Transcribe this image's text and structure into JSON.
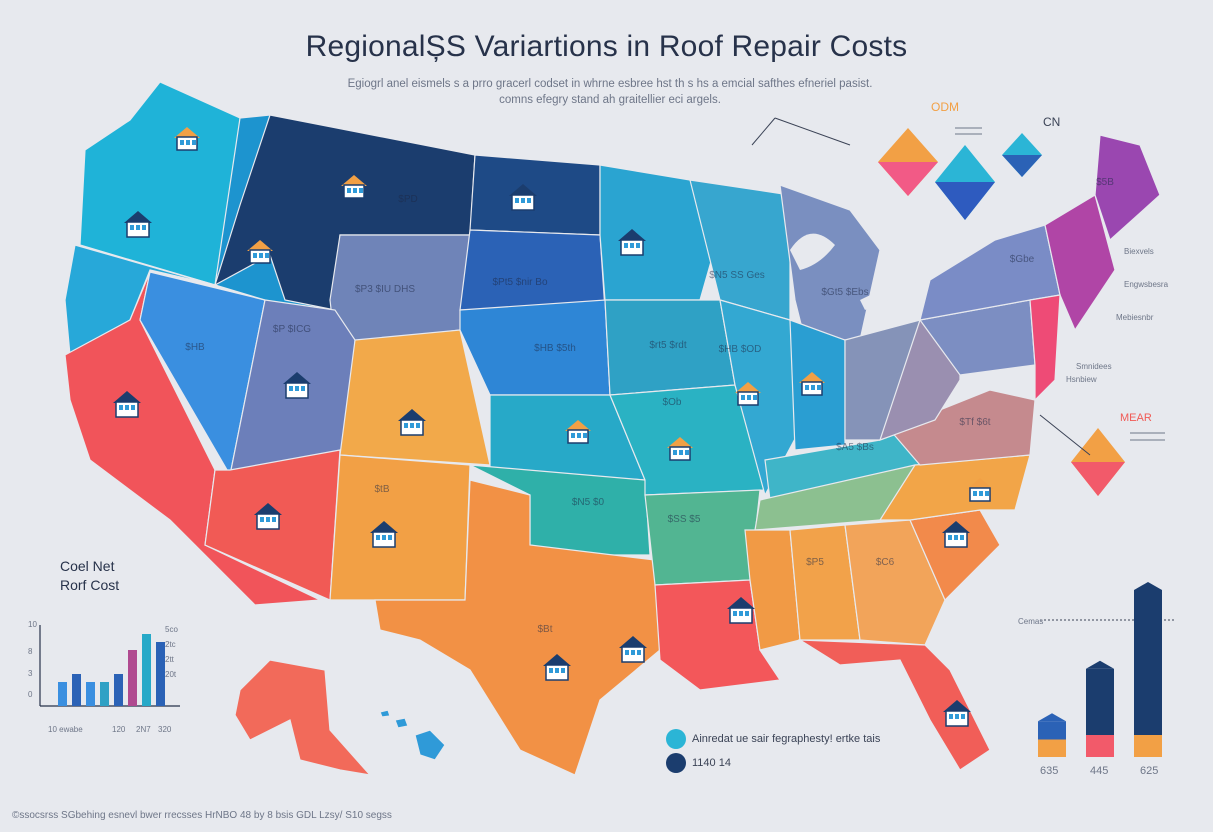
{
  "title": "RegionalȘS Variartions in Roof Repair Costs",
  "subtitle_lines": [
    "Egiogrl anel eismels s a prro gracerl codset in whrne esbree hst th s hs a emcial safthes efneriel pasist.",
    "comns efegry stand ah graitellier eci argels."
  ],
  "map_states": [
    {
      "region": "Washington",
      "color": "#1fb3d8"
    },
    {
      "region": "Oregon",
      "color": "#27a8d9"
    },
    {
      "region": "California",
      "color": "#f1545a"
    },
    {
      "region": "Nevada",
      "color": "#3a8fe0"
    },
    {
      "region": "Idaho",
      "color": "#1d94cf"
    },
    {
      "region": "Montana",
      "color": "#1b3d6e"
    },
    {
      "region": "Wyoming",
      "color": "#6f84b8"
    },
    {
      "region": "Utah",
      "color": "#6c7fba"
    },
    {
      "region": "Colorado",
      "color": "#f2a94a"
    },
    {
      "region": "Arizona",
      "color": "#f15a55"
    },
    {
      "region": "New Mexico",
      "color": "#f2a045"
    },
    {
      "region": "North Dakota",
      "color": "#1e4a86"
    },
    {
      "region": "South Dakota",
      "color": "#2b62b6"
    },
    {
      "region": "Nebraska",
      "color": "#2e86d6"
    },
    {
      "region": "Kansas",
      "color": "#27a9c8"
    },
    {
      "region": "Oklahoma",
      "color": "#2fb0a9"
    },
    {
      "region": "Texas",
      "color": "#f29145"
    },
    {
      "region": "Minnesota",
      "color": "#2aa4d1"
    },
    {
      "region": "Iowa",
      "color": "#2fa1c5"
    },
    {
      "region": "Missouri",
      "color": "#2ab2c3"
    },
    {
      "region": "Arkansas",
      "color": "#52b592"
    },
    {
      "region": "Louisiana",
      "color": "#f3575a"
    },
    {
      "region": "Wisconsin",
      "color": "#37a6cf"
    },
    {
      "region": "Illinois",
      "color": "#33a8d2"
    },
    {
      "region": "Michigan",
      "color": "#7a8fc0"
    },
    {
      "region": "Indiana",
      "color": "#2a9ed2"
    },
    {
      "region": "Ohio",
      "color": "#8593b8"
    },
    {
      "region": "Kentucky",
      "color": "#3fb5c8"
    },
    {
      "region": "Tennessee",
      "color": "#8cc090"
    },
    {
      "region": "Mississippi",
      "color": "#f19a45"
    },
    {
      "region": "Alabama",
      "color": "#f2a24a"
    },
    {
      "region": "Georgia",
      "color": "#f2a45a"
    },
    {
      "region": "Florida",
      "color": "#f15e58"
    },
    {
      "region": "South Carolina",
      "color": "#f28a4b"
    },
    {
      "region": "North Carolina",
      "color": "#f2a548"
    },
    {
      "region": "Virginia",
      "color": "#c58a8e"
    },
    {
      "region": "West Virginia",
      "color": "#9a8fb0"
    },
    {
      "region": "Pennsylvania",
      "color": "#7c8ec2"
    },
    {
      "region": "New York",
      "color": "#7a8cc6"
    },
    {
      "region": "New England",
      "color": "#b045a6"
    },
    {
      "region": "Maine",
      "color": "#9a47b0"
    },
    {
      "region": "New Jersey",
      "color": "#ee4b76"
    },
    {
      "region": "Alaska",
      "color": "#f26a5a"
    },
    {
      "region": "Hawaii",
      "color": "#2f9ad8"
    }
  ],
  "map_labels": [
    {
      "text": "$PD",
      "state": "Montana"
    },
    {
      "text": "$Pt5 $nir Bo",
      "state": "South Dakota"
    },
    {
      "text": "$P3 $IU DHS",
      "state": "Wyoming"
    },
    {
      "text": "$P $ICG",
      "state": "Utah"
    },
    {
      "text": "$HB",
      "state": "Nevada"
    },
    {
      "text": "$N5 SS Ges",
      "state": "Minnesota"
    },
    {
      "text": "$Gt5 $Ebs",
      "state": "Michigan"
    },
    {
      "text": "$rt5 $rdt",
      "state": "Iowa"
    },
    {
      "text": "$HB $5th",
      "state": "Nebraska"
    },
    {
      "text": "$HB $OD",
      "state": "Illinois"
    },
    {
      "text": "$Gbe",
      "state": "Pennsylvania"
    },
    {
      "text": "$Ob",
      "state": "Missouri"
    },
    {
      "text": "$N5 $0",
      "state": "Oklahoma"
    },
    {
      "text": "$tB",
      "state": "New Mexico"
    },
    {
      "text": "$SS $5",
      "state": "Arkansas"
    },
    {
      "text": "$P5",
      "state": "Alabama"
    },
    {
      "text": "$C6",
      "state": "Georgia"
    },
    {
      "text": "$Bt",
      "state": "Texas"
    },
    {
      "text": "$Tf $6t",
      "state": "Virginia"
    },
    {
      "text": "$A5 $Bs",
      "state": "Kentucky"
    },
    {
      "text": "$5B",
      "state": "New England"
    }
  ],
  "callouts": {
    "odm": "ODM",
    "cn": "CN",
    "mear": "MEAR",
    "side_notes": [
      "Biexvels",
      "Engwsbesra",
      "Mebiesnbr",
      "Smnidees",
      "Hsnbiew"
    ],
    "cemas": "Cemas"
  },
  "inset": {
    "title": "Coel Net\nRorf Cost",
    "y_ticks": [
      "10",
      "8",
      "3",
      "0"
    ],
    "values": [
      3,
      4,
      3,
      3,
      4,
      7,
      9,
      8
    ],
    "colors": [
      "#3a8fe0",
      "#2b62b6",
      "#3a8fe0",
      "#2fa1c5",
      "#2b62b6",
      "#b04a90",
      "#27a9c8",
      "#2b62b6"
    ],
    "x_labels": [
      "10 ewabe",
      "120",
      "2N7",
      "320"
    ],
    "side_labels": [
      "5co",
      "2tc",
      "2tt",
      "20t"
    ]
  },
  "bars_right": {
    "values": [
      25,
      55,
      100
    ],
    "labels": [
      "635",
      "445",
      "625"
    ]
  },
  "legend": [
    {
      "text": "Ainredat ue sair fegraphesty! ertke tais",
      "color": "#2bb5d6"
    },
    {
      "text": "1140 14",
      "color": "#1b3d6e"
    }
  ],
  "footer": "©ssocsrss SGbehing esnevl bwer rrecsses HrNBO 48 by 8 bsis GDL Lzsy/ S10 segss"
}
